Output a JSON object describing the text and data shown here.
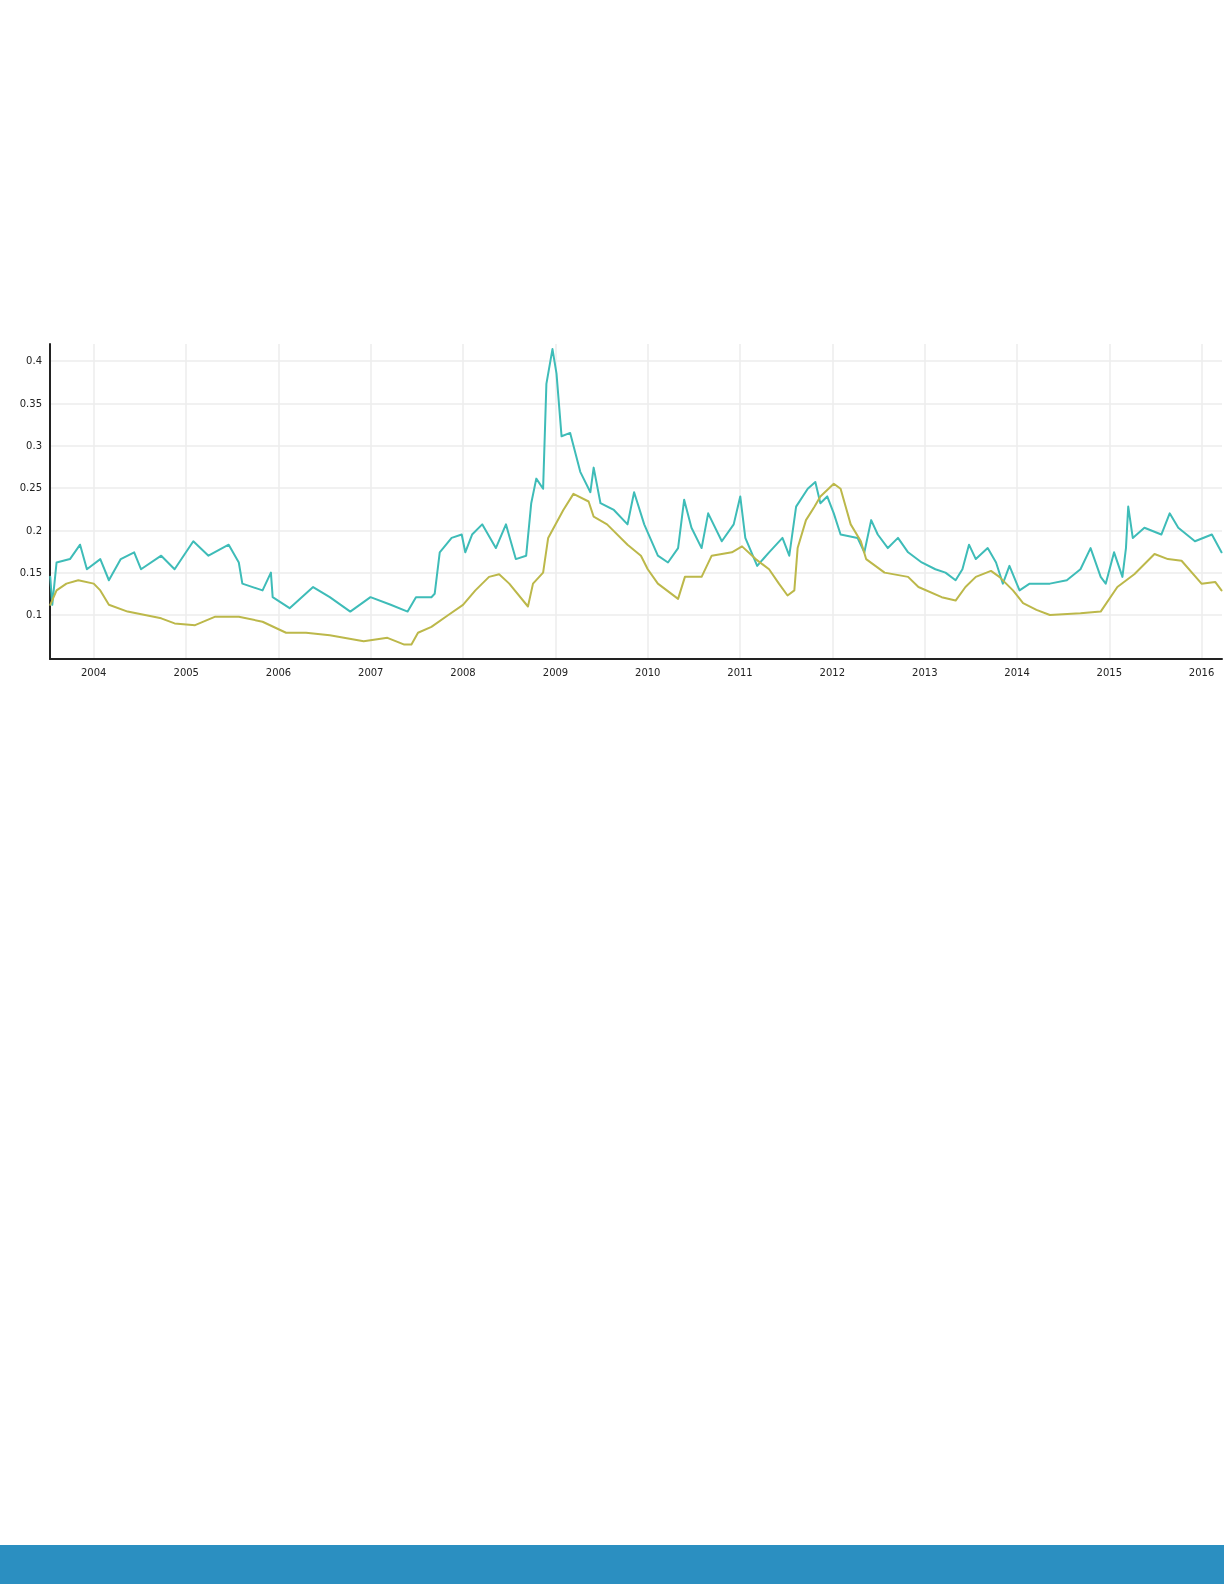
{
  "chart_data": {
    "type": "line",
    "xlim": [
      "2003-07-12",
      "2016-03-22"
    ],
    "ylim": [
      0.048,
      0.42
    ],
    "xticks": [
      "2004",
      "2005",
      "2006",
      "2007",
      "2008",
      "2009",
      "2010",
      "2011",
      "2012",
      "2013",
      "2014",
      "2015",
      "2016"
    ],
    "yticks": [
      0.1,
      0.15,
      0.2,
      0.25,
      0.3,
      0.35,
      0.4
    ],
    "grid": true,
    "marker": "none",
    "line_style": "solid",
    "series": [
      {
        "color": "#3ebcb8",
        "x": [
          "2003-07-13",
          "2003-07-21",
          "2003-08-07",
          "2003-09-29",
          "2003-11-08",
          "2003-12-05",
          "2004-01-27",
          "2004-03-01",
          "2004-04-17",
          "2004-06-09",
          "2004-07-06",
          "2004-09-24",
          "2004-11-16",
          "2005-01-29",
          "2005-03-30",
          "2005-06-18",
          "2005-07-28",
          "2005-08-11",
          "2005-10-30",
          "2005-12-02",
          "2005-12-09",
          "2006-02-14",
          "2006-05-18",
          "2006-07-23",
          "2006-10-12",
          "2006-12-31",
          "2007-03-21",
          "2007-05-27",
          "2007-06-29",
          "2007-08-29",
          "2007-09-11",
          "2007-10-01",
          "2007-11-17",
          "2007-12-27",
          "2008-01-10",
          "2008-02-06",
          "2008-03-17",
          "2008-05-10",
          "2008-06-19",
          "2008-07-28",
          "2008-09-07",
          "2008-09-27",
          "2008-10-17",
          "2008-11-13",
          "2008-11-26",
          "2008-12-20",
          "2009-01-05",
          "2009-01-25",
          "2009-02-28",
          "2009-04-09",
          "2009-05-19",
          "2009-06-01",
          "2009-06-28",
          "2009-08-20",
          "2009-10-13",
          "2009-11-08",
          "2009-12-18",
          "2010-02-10",
          "2010-03-22",
          "2010-05-01",
          "2010-05-25",
          "2010-06-23",
          "2010-08-02",
          "2010-08-28",
          "2010-10-21",
          "2010-12-07",
          "2011-01-02",
          "2011-01-22",
          "2011-03-10",
          "2011-04-26",
          "2011-06-18",
          "2011-07-15",
          "2011-08-11",
          "2011-09-26",
          "2011-10-26",
          "2011-11-15",
          "2011-12-12",
          "2012-01-07",
          "2012-02-03",
          "2012-04-10",
          "2012-05-07",
          "2012-06-03",
          "2012-06-29",
          "2012-08-08",
          "2012-09-17",
          "2012-10-27",
          "2012-12-20",
          "2013-02-12",
          "2013-03-24",
          "2013-05-03",
          "2013-05-30",
          "2013-06-25",
          "2013-07-22",
          "2013-09-07",
          "2013-10-10",
          "2013-11-06",
          "2013-12-02",
          "2014-01-11",
          "2014-02-20",
          "2014-05-11",
          "2014-07-17",
          "2014-09-09",
          "2014-10-19",
          "2014-11-28",
          "2014-12-18",
          "2015-01-20",
          "2015-02-22",
          "2015-03-08",
          "2015-03-17",
          "2015-04-04",
          "2015-05-20",
          "2015-07-26",
          "2015-08-28",
          "2015-10-01",
          "2015-12-06",
          "2016-02-11",
          "2016-03-20"
        ],
        "values": [
          0.145,
          0.112,
          0.162,
          0.166,
          0.183,
          0.154,
          0.166,
          0.141,
          0.166,
          0.174,
          0.154,
          0.17,
          0.154,
          0.187,
          0.17,
          0.183,
          0.162,
          0.137,
          0.129,
          0.15,
          0.121,
          0.108,
          0.133,
          0.121,
          0.104,
          0.121,
          0.112,
          0.104,
          0.121,
          0.121,
          0.125,
          0.174,
          0.191,
          0.195,
          0.174,
          0.195,
          0.207,
          0.179,
          0.207,
          0.166,
          0.17,
          0.232,
          0.261,
          0.249,
          0.373,
          0.414,
          0.385,
          0.311,
          0.315,
          0.269,
          0.245,
          0.274,
          0.232,
          0.224,
          0.207,
          0.245,
          0.207,
          0.17,
          0.162,
          0.179,
          0.236,
          0.203,
          0.179,
          0.22,
          0.187,
          0.207,
          0.24,
          0.191,
          0.158,
          0.174,
          0.191,
          0.17,
          0.228,
          0.249,
          0.257,
          0.232,
          0.24,
          0.22,
          0.195,
          0.191,
          0.174,
          0.212,
          0.195,
          0.179,
          0.191,
          0.174,
          0.162,
          0.154,
          0.15,
          0.141,
          0.154,
          0.183,
          0.166,
          0.179,
          0.162,
          0.137,
          0.158,
          0.129,
          0.137,
          0.137,
          0.141,
          0.154,
          0.179,
          0.145,
          0.137,
          0.174,
          0.145,
          0.179,
          0.228,
          0.191,
          0.203,
          0.195,
          0.22,
          0.203,
          0.187,
          0.195,
          0.174
        ]
      },
      {
        "color": "#bcb84a",
        "x": [
          "2003-07-13",
          "2003-08-07",
          "2003-09-15",
          "2003-11-01",
          "2004-01-01",
          "2004-01-27",
          "2004-03-01",
          "2004-05-14",
          "2004-09-24",
          "2004-11-16",
          "2005-02-05",
          "2005-04-26",
          "2005-07-28",
          "2005-10-30",
          "2006-01-31",
          "2006-04-20",
          "2006-07-23",
          "2006-12-04",
          "2007-03-08",
          "2007-05-14",
          "2007-06-11",
          "2007-07-07",
          "2007-08-29",
          "2007-11-04",
          "2008-01-01",
          "2008-02-19",
          "2008-04-13",
          "2008-05-23",
          "2008-07-02",
          "2008-09-14",
          "2008-10-04",
          "2008-11-13",
          "2008-12-03",
          "2009-02-01",
          "2009-03-13",
          "2009-05-12",
          "2009-06-01",
          "2009-07-24",
          "2009-10-13",
          "2009-12-05",
          "2010-01-01",
          "2010-02-10",
          "2010-05-01",
          "2010-05-28",
          "2010-08-02",
          "2010-09-11",
          "2010-11-30",
          "2011-01-09",
          "2011-03-04",
          "2011-04-26",
          "2011-06-04",
          "2011-07-08",
          "2011-08-04",
          "2011-08-17",
          "2011-09-19",
          "2011-10-23",
          "2011-11-15",
          "2012-01-07",
          "2012-02-03",
          "2012-03-14",
          "2012-04-23",
          "2012-05-14",
          "2012-07-26",
          "2012-10-27",
          "2012-12-07",
          "2013-03-09",
          "2013-05-03",
          "2013-06-11",
          "2013-07-22",
          "2013-09-20",
          "2013-10-23",
          "2013-12-16",
          "2014-01-25",
          "2014-03-19",
          "2014-05-11",
          "2014-09-09",
          "2014-11-28",
          "2015-02-02",
          "2015-04-10",
          "2015-06-29",
          "2015-08-21",
          "2015-10-14",
          "2016-01-01",
          "2016-02-24",
          "2016-03-20"
        ],
        "values": [
          0.112,
          0.129,
          0.137,
          0.141,
          0.137,
          0.129,
          0.112,
          0.104,
          0.096,
          0.09,
          0.088,
          0.098,
          0.098,
          0.092,
          0.079,
          0.079,
          0.076,
          0.069,
          0.073,
          0.065,
          0.065,
          0.079,
          0.086,
          0.1,
          0.112,
          0.129,
          0.145,
          0.148,
          0.137,
          0.11,
          0.137,
          0.15,
          0.191,
          0.224,
          0.243,
          0.234,
          0.216,
          0.207,
          0.183,
          0.17,
          0.154,
          0.137,
          0.119,
          0.145,
          0.145,
          0.17,
          0.174,
          0.181,
          0.166,
          0.154,
          0.137,
          0.123,
          0.129,
          0.179,
          0.212,
          0.228,
          0.24,
          0.255,
          0.249,
          0.207,
          0.187,
          0.166,
          0.15,
          0.145,
          0.133,
          0.121,
          0.117,
          0.133,
          0.145,
          0.152,
          0.145,
          0.129,
          0.114,
          0.106,
          0.1,
          0.102,
          0.104,
          0.133,
          0.148,
          0.172,
          0.166,
          0.164,
          0.137,
          0.139,
          0.129
        ]
      }
    ]
  }
}
